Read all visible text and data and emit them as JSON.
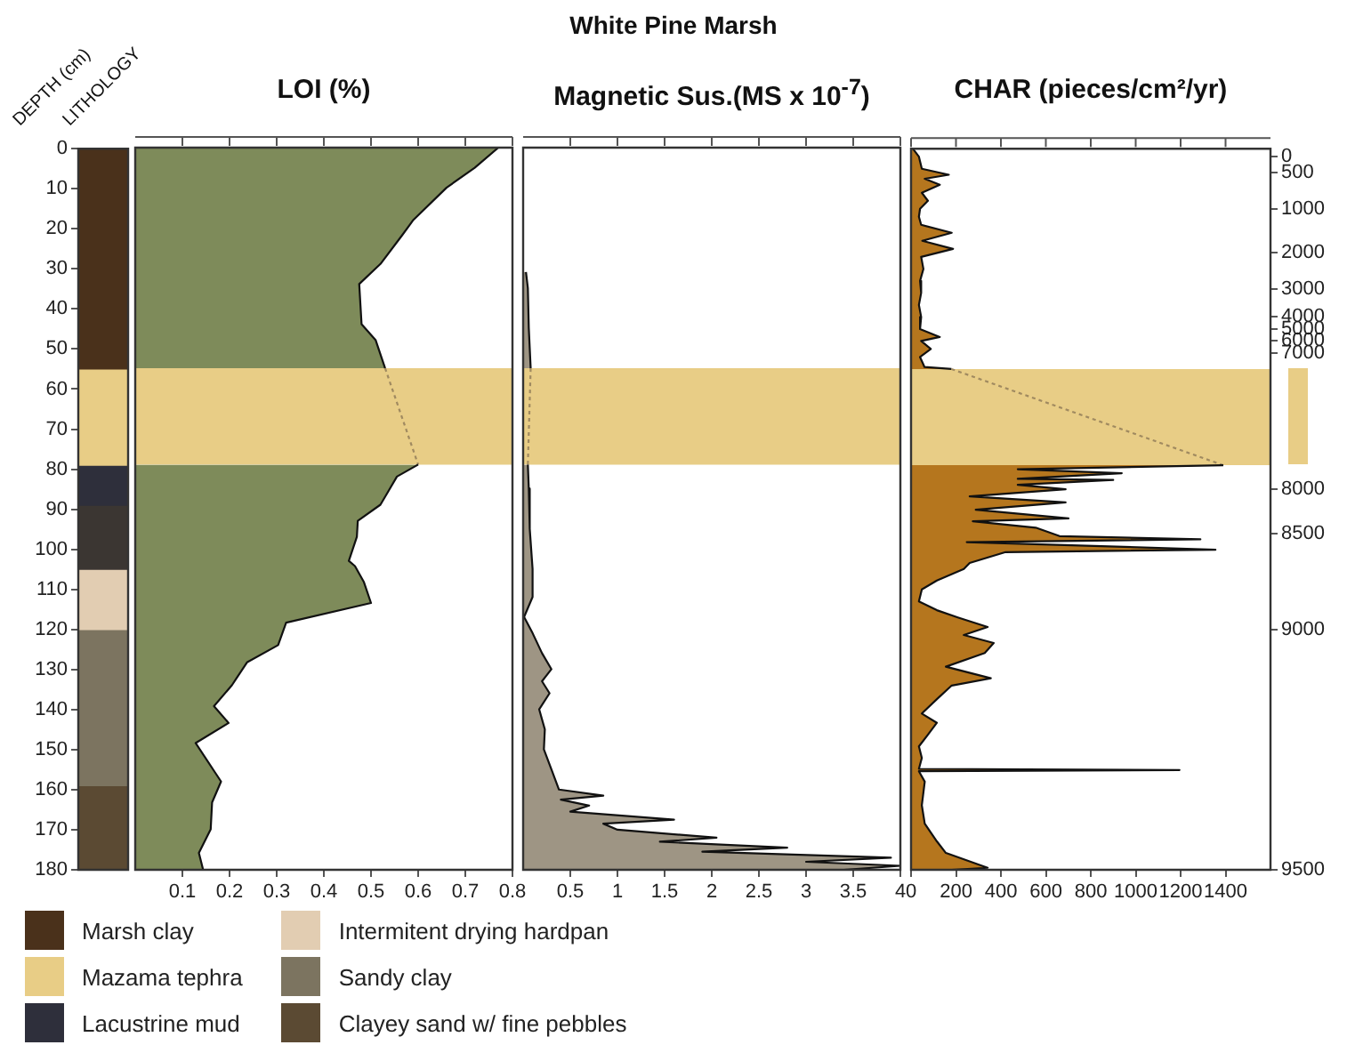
{
  "chart_data": [
    {
      "type": "bar",
      "title": "LITHOLOGY",
      "ylabel": "DEPTH (cm)",
      "annotations": [
        "White Pine Marsh"
      ],
      "categories": [
        null
      ],
      "stacked": true,
      "legend": "bottom",
      "tick_labels": "y",
      "ylim": [
        180,
        0
      ],
      "yticks": [
        0,
        10,
        20,
        30,
        40,
        50,
        60,
        70,
        80,
        90,
        100,
        110,
        120,
        130,
        140,
        150,
        160,
        170,
        180
      ],
      "series": [
        {
          "name": "Marsh clay",
          "color": "#4a311b",
          "values": [
            55
          ]
        },
        {
          "name": "Mazama tephra",
          "color": "#e8cd86",
          "values": [
            24
          ]
        },
        {
          "name": "Lacustrine mud",
          "color": "#2e2f3b",
          "values": [
            10
          ]
        },
        {
          "color": "#3b3632",
          "values": [
            16
          ]
        },
        {
          "name": "Intermitent drying hardpan",
          "color": "#e2cdb2",
          "values": [
            15
          ]
        },
        {
          "name": "Sandy clay",
          "color": "#7c7460",
          "values": [
            39
          ]
        },
        {
          "name": "Clayey sand w/ fine pebbles",
          "color": "#5b4a33",
          "values": [
            21
          ]
        }
      ]
    },
    {
      "type": "area",
      "title": "LOI (%)",
      "orientation": "horizontal",
      "tick_labels": "x",
      "xlim": [
        0,
        0.8
      ],
      "xticks": [
        0.1,
        0.2,
        0.3,
        0.4,
        0.5,
        0.6,
        0.7,
        0.8
      ],
      "ylim": [
        180,
        0
      ],
      "bands": [
        {
          "axis": "y",
          "from": 55,
          "to": 79,
          "color": "#e8cd86"
        }
      ],
      "x": [
        0,
        5,
        10,
        18,
        22,
        29,
        34,
        44,
        48,
        55,
        79,
        82,
        86,
        89,
        93,
        97,
        103,
        104.3,
        108.3,
        113.5,
        118.4,
        124,
        128.3,
        134,
        139.2,
        143.4,
        148.4,
        158,
        163.2,
        169.9,
        175.8,
        180
      ],
      "series": [
        {
          "color": "#7e8b5a",
          "values": [
            0.77,
            0.72,
            0.66,
            0.59,
            0.565,
            0.52,
            0.475,
            0.48,
            0.51,
            0.53,
            0.6,
            0.555,
            0.535,
            0.52,
            0.472,
            0.47,
            0.453,
            0.466,
            0.485,
            0.5,
            0.32,
            0.303,
            0.237,
            0.205,
            0.167,
            0.198,
            0.128,
            0.182,
            0.163,
            0.16,
            0.135,
            0.144
          ]
        }
      ]
    },
    {
      "type": "area",
      "title": "Magnetic Sus.(MS x 10$^{-7}$)",
      "orientation": "horizontal",
      "tick_labels": "x",
      "xlim": [
        0,
        4
      ],
      "xticks": [
        0.5,
        1,
        1.5,
        2,
        2.5,
        3,
        3.5,
        4
      ],
      "ylim": [
        180,
        0
      ],
      "bands": [
        {
          "axis": "y",
          "from": 55,
          "to": 79,
          "color": "#e8cd86"
        }
      ],
      "x": [
        31,
        35,
        45,
        55,
        79,
        85,
        95,
        105,
        112,
        117,
        121,
        126,
        130,
        133,
        136,
        140,
        145,
        150,
        155,
        160,
        161.5,
        162.5,
        164,
        165.5,
        167.5,
        168.5,
        170,
        172,
        173,
        174.5,
        175.5,
        177,
        178,
        179,
        180
      ],
      "series": [
        {
          "color": "#9e9584",
          "values": [
            0.03,
            0.05,
            0.06,
            0.08,
            0.05,
            0.06,
            0.07,
            0.1,
            0.1,
            0.01,
            0.1,
            0.2,
            0.3,
            0.2,
            0.28,
            0.17,
            0.23,
            0.22,
            0.3,
            0.38,
            0.85,
            0.4,
            0.7,
            0.5,
            1.6,
            0.85,
            1.0,
            2.05,
            1.45,
            2.8,
            1.9,
            3.9,
            3.0,
            4.0,
            3.4
          ]
        }
      ]
    },
    {
      "type": "area",
      "title": "CHAR (pieces/cm²/yr)",
      "orientation": "horizontal",
      "tick_labels": "x",
      "xlim": [
        0,
        1600
      ],
      "xticks": [
        0,
        200,
        400,
        600,
        800,
        1000,
        1200,
        1400
      ],
      "ylim": [
        180,
        0
      ],
      "y2_categories": [
        null,
        null,
        "0",
        null,
        null,
        null,
        "500",
        null,
        null,
        null,
        null,
        null,
        null,
        null,
        null,
        "1000",
        null,
        null,
        null,
        null,
        null,
        null,
        null,
        null,
        null,
        null,
        "2000",
        null,
        null,
        null,
        null,
        null,
        null,
        null,
        null,
        "3000",
        null,
        null,
        null,
        null,
        null,
        null,
        "4000",
        null,
        null,
        "5000",
        null,
        null,
        "6000",
        null,
        null,
        "7000",
        null,
        null,
        null,
        null,
        null,
        null,
        null,
        null,
        null,
        null,
        null,
        null,
        null,
        null,
        null,
        null,
        null,
        null,
        null,
        null,
        null,
        null,
        null,
        null,
        null,
        null,
        null,
        null,
        null,
        null,
        null,
        null,
        null,
        "8000",
        null,
        null,
        null,
        null,
        null,
        null,
        null,
        null,
        null,
        null,
        "8500",
        null,
        null,
        null,
        null,
        null,
        null,
        null,
        null,
        null,
        null,
        null,
        null,
        null,
        null,
        null,
        null,
        null,
        null,
        null,
        null,
        null,
        null,
        null,
        "9000",
        null,
        null,
        null,
        null,
        null,
        null,
        null,
        null,
        null,
        null,
        null,
        null,
        null,
        null,
        null,
        null,
        null,
        null,
        null,
        null,
        null,
        null,
        null,
        null,
        null,
        null,
        null,
        null,
        null,
        null,
        null,
        null,
        null,
        null,
        null,
        null,
        null,
        null,
        null,
        null,
        null,
        null,
        null,
        null,
        null,
        null,
        null,
        null,
        null,
        null,
        null,
        null,
        null,
        null,
        null,
        null,
        null,
        null,
        null,
        "9500"
      ],
      "bands": [
        {
          "axis": "y",
          "from": 55,
          "to": 79,
          "color": "#e8cd86"
        }
      ],
      "x": [
        0,
        2,
        5,
        6.5,
        7.5,
        9,
        11,
        13,
        15,
        17,
        19,
        21,
        23,
        25,
        27,
        30,
        33,
        36,
        39,
        42,
        45,
        47,
        48,
        50,
        52,
        54.5,
        55,
        79,
        80,
        81,
        82.4,
        82.7,
        83.9,
        85,
        86.8,
        88.3,
        90.1,
        92.3,
        93,
        94.6,
        96.7,
        97.5,
        98.2,
        100.1,
        100.7,
        103.4,
        104.9,
        107.8,
        110,
        113,
        115.2,
        117,
        119.4,
        121.4,
        123.4,
        125.9,
        129.3,
        132.2,
        134,
        137.4,
        141,
        143.3,
        146.3,
        149.2,
        152.1,
        154.8,
        155.1,
        155.4,
        158,
        163.9,
        168.5,
        172.9,
        175.8,
        179.5,
        180
      ],
      "series": [
        {
          "color": "#b5761e",
          "values": [
            8,
            35,
            48,
            168,
            61,
            128,
            48,
            75,
            40,
            35,
            45,
            181,
            50,
            187,
            45,
            55,
            40,
            45,
            35,
            45,
            40,
            128,
            45,
            88,
            40,
            60,
            180,
            1390,
            475,
            938,
            475,
            900,
            475,
            688,
            261,
            688,
            288,
            701,
            275,
            555,
            661,
            1288,
            248,
            1355,
            421,
            261,
            235,
            115,
            48,
            35,
            115,
            208,
            341,
            235,
            368,
            328,
            155,
            355,
            181,
            115,
            48,
            115,
            75,
            35,
            48,
            35,
            1195,
            35,
            61,
            48,
            61,
            115,
            155,
            341,
            181
          ]
        }
      ]
    }
  ]
}
